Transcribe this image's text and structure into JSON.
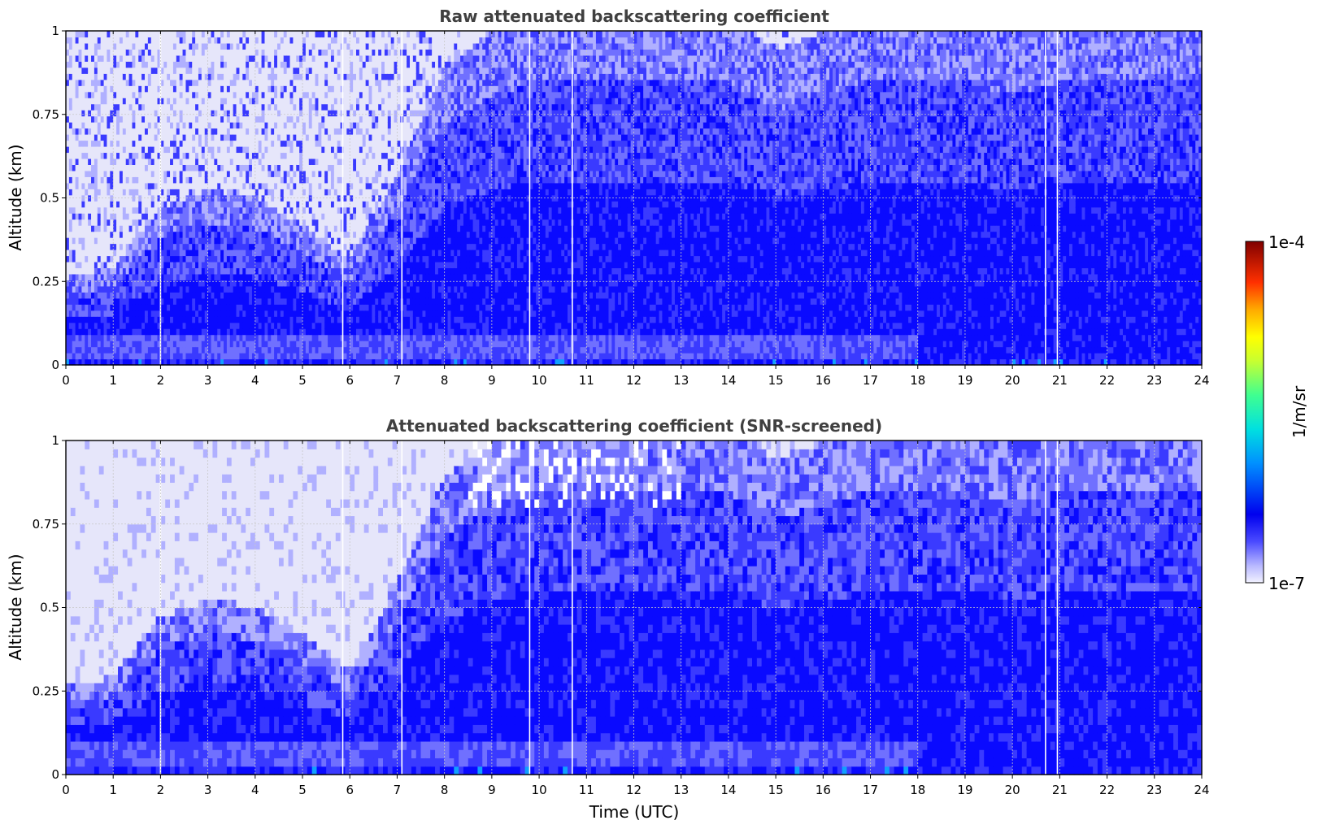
{
  "chart_data": [
    {
      "type": "heatmap",
      "title": "Raw attenuated backscattering coefficient",
      "xlabel": "",
      "ylabel": "Altitude (km)",
      "xlim": [
        0,
        24
      ],
      "ylim": [
        0,
        1
      ],
      "xticks": [
        "0",
        "1",
        "2",
        "3",
        "4",
        "5",
        "6",
        "7",
        "8",
        "9",
        "10",
        "11",
        "12",
        "13",
        "14",
        "15",
        "16",
        "17",
        "18",
        "19",
        "20",
        "21",
        "22",
        "23",
        "24"
      ],
      "yticks": [
        "0",
        "0.25",
        "0.5",
        "0.75",
        "1"
      ],
      "ytick_values": [
        0,
        0.25,
        0.5,
        0.75,
        1
      ],
      "grid": true,
      "screened": false,
      "gap_times_utc": [
        2.0,
        5.85,
        7.1,
        9.8,
        10.7,
        20.7,
        20.95
      ],
      "intensity_profile": {
        "times_utc": [
          0,
          1,
          2,
          3,
          4,
          5,
          6,
          7,
          8,
          9,
          10,
          11,
          12,
          13,
          14,
          15,
          16,
          17,
          18,
          19,
          20,
          21,
          22,
          23,
          24
        ],
        "clear_air_top_km": [
          0.25,
          0.28,
          0.45,
          0.5,
          0.48,
          0.4,
          0.3,
          0.55,
          0.85,
          0.95,
          1.0,
          1.0,
          1.0,
          1.0,
          1.0,
          0.9,
          0.95,
          1.0,
          1.0,
          1.0,
          0.95,
          1.0,
          1.0,
          1.0,
          1.0
        ]
      }
    },
    {
      "type": "heatmap",
      "title": "Attenuated backscattering coefficient (SNR-screened)",
      "xlabel": "Time (UTC)",
      "ylabel": "Altitude (km)",
      "xlim": [
        0,
        24
      ],
      "ylim": [
        0,
        1
      ],
      "xticks": [
        "0",
        "1",
        "2",
        "3",
        "4",
        "5",
        "6",
        "7",
        "8",
        "9",
        "10",
        "11",
        "12",
        "13",
        "14",
        "15",
        "16",
        "17",
        "18",
        "19",
        "20",
        "21",
        "22",
        "23",
        "24"
      ],
      "yticks": [
        "0",
        "0.25",
        "0.5",
        "0.75",
        "1"
      ],
      "ytick_values": [
        0,
        0.25,
        0.5,
        0.75,
        1
      ],
      "grid": true,
      "screened": true,
      "gap_times_utc": [
        2.0,
        5.85,
        7.1,
        9.8,
        10.7,
        20.7,
        20.95
      ],
      "intensity_profile": {
        "times_utc": [
          0,
          1,
          2,
          3,
          4,
          5,
          6,
          7,
          8,
          9,
          10,
          11,
          12,
          13,
          14,
          15,
          16,
          17,
          18,
          19,
          20,
          21,
          22,
          23,
          24
        ],
        "clear_air_top_km": [
          0.25,
          0.28,
          0.45,
          0.5,
          0.48,
          0.4,
          0.3,
          0.55,
          0.85,
          0.95,
          1.0,
          1.0,
          1.0,
          1.0,
          1.0,
          0.9,
          0.95,
          1.0,
          1.0,
          1.0,
          0.95,
          1.0,
          1.0,
          1.0,
          1.0
        ]
      }
    }
  ],
  "colorbar": {
    "min_label": "1e-7",
    "max_label": "1e-4",
    "unit_label": "1/m/sr",
    "colormap": "jet",
    "low_color": "#e8e8ff"
  },
  "colors": {
    "very_low": "#e6e6fa",
    "low": "#b0b0ff",
    "mid_low": "#7070ff",
    "mid": "#3a3aff",
    "high": "#0a0aff",
    "background": "#ffffff"
  }
}
